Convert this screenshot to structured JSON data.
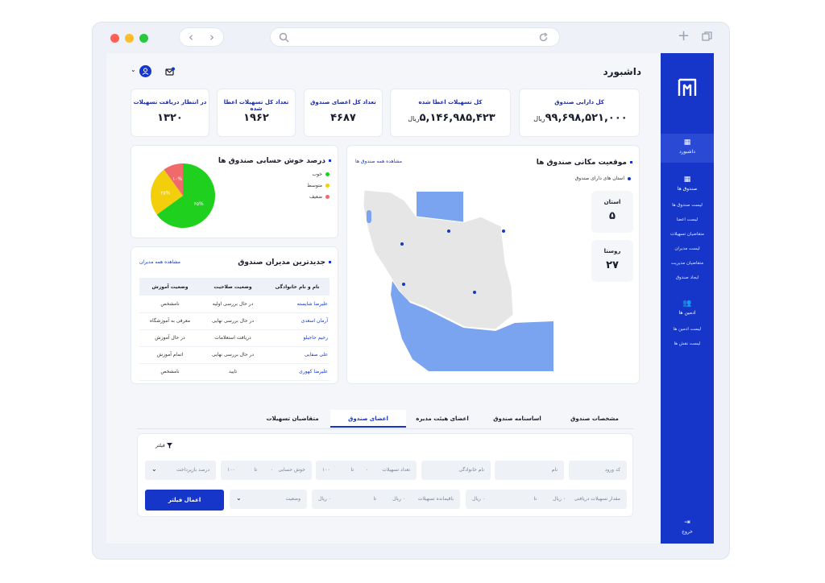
{
  "header": {
    "title": "داشبورد"
  },
  "stats": [
    {
      "label": "کل دارایی صندوق",
      "value": "۹۹,۶۹۸,۵۲۱,۰۰۰",
      "unit": "ریال"
    },
    {
      "label": "کل تسهیلات اعطا شده",
      "value": "۵,۱۴۶,۹۸۵,۴۲۳",
      "unit": "ریال"
    },
    {
      "label": "تعداد کل اعضای صندوق",
      "value": "۴۶۸۷",
      "unit": ""
    },
    {
      "label": "تعداد کل تسهیلات اعطا شده",
      "value": "۱۹۶۲",
      "unit": ""
    },
    {
      "label": "در انتظار دریافت تسهیلات",
      "value": "۱۳۲۰",
      "unit": ""
    }
  ],
  "map_section": {
    "title": "موقعیت مکانی صندوق ها",
    "link": "مشاهده همه صندوق ها",
    "legend": "استان های دارای صندوق",
    "province_label": "استان",
    "province_value": "۵",
    "village_label": "روستا",
    "village_value": "۲۷"
  },
  "pie_section": {
    "title": "درصد خوش حسابی صندوق ها",
    "legend": [
      {
        "label": "خوب",
        "color": "#1fd01f"
      },
      {
        "label": "متوسط",
        "color": "#f2cf0a"
      },
      {
        "label": "ضعیف",
        "color": "#f06a6a"
      }
    ],
    "slices": [
      {
        "value": 65,
        "label": "۶۵%",
        "color": "#1fd01f"
      },
      {
        "value": 25,
        "label": "۲۵%",
        "color": "#f2cf0a"
      },
      {
        "value": 10,
        "label": "۱۰%",
        "color": "#f06a6a"
      }
    ]
  },
  "managers": {
    "title": "جدیدترین مدیران صندوق",
    "link": "مشاهده همه مدیران",
    "headers": [
      "نام و نام خانوادگی",
      "وضعیت صلاحیت",
      "وضعیت آموزش"
    ],
    "rows": [
      [
        "علیرضا شایسته",
        "در حال بررسی اولیه",
        "نامشخص"
      ],
      [
        "آرمان اسعدی",
        "در حال بررسی نهایی",
        "معرفی به آموزشگاه"
      ],
      [
        "رحیم حاجیلو",
        "دریافت استعلامات",
        "در حال آموزش"
      ],
      [
        "علی صفایی",
        "در حال بررسی نهایی",
        "اتمام آموزش"
      ],
      [
        "علیرضا کهوری",
        "تایید",
        "نامشخص"
      ]
    ]
  },
  "tabs": [
    {
      "label": "مشخصات صندوق",
      "active": false
    },
    {
      "label": "اساسنامه صندوق",
      "active": false
    },
    {
      "label": "اعضای هیئت مدیره",
      "active": false
    },
    {
      "label": "اعضای صندوق",
      "active": true
    },
    {
      "label": "متقاضیان تسهیلات",
      "active": false
    }
  ],
  "filter": {
    "title": "فیلتر",
    "fields": {
      "code": "کد ورود",
      "name": "نام",
      "family": "نام خانوادگی",
      "loan_count": "تعداد تسهیلات",
      "good_payer": "خوش حسابی",
      "repayment": "درصد بازپرداخت",
      "received_amount": "مقدار تسهیلات دریافتی",
      "remaining": "باقیمانده تسهیلات",
      "status": "وضعیت"
    },
    "to": "تا",
    "zero": "۰",
    "hundred": "۱۰۰",
    "rial_zero": "۰ ریال",
    "apply": "اعمال فیلتر"
  },
  "sidebar": {
    "dashboard": "داشبورد",
    "funds": "صندوق ها",
    "fund_links": [
      "لیست صندوق ها",
      "لیست اعضا",
      "متقاضیان تسهیلات",
      "لیست مدیران",
      "متقاضیان مدیریت",
      "ایجاد صندوق"
    ],
    "admins": "ادمین ها",
    "admin_links": [
      "لیست ادمین ها",
      "لیست نقش ها"
    ],
    "logout": "خروج"
  },
  "colors": {
    "primary": "#1536c9",
    "map_land": "#e6e6e6",
    "map_water": "#7aa3f0"
  }
}
